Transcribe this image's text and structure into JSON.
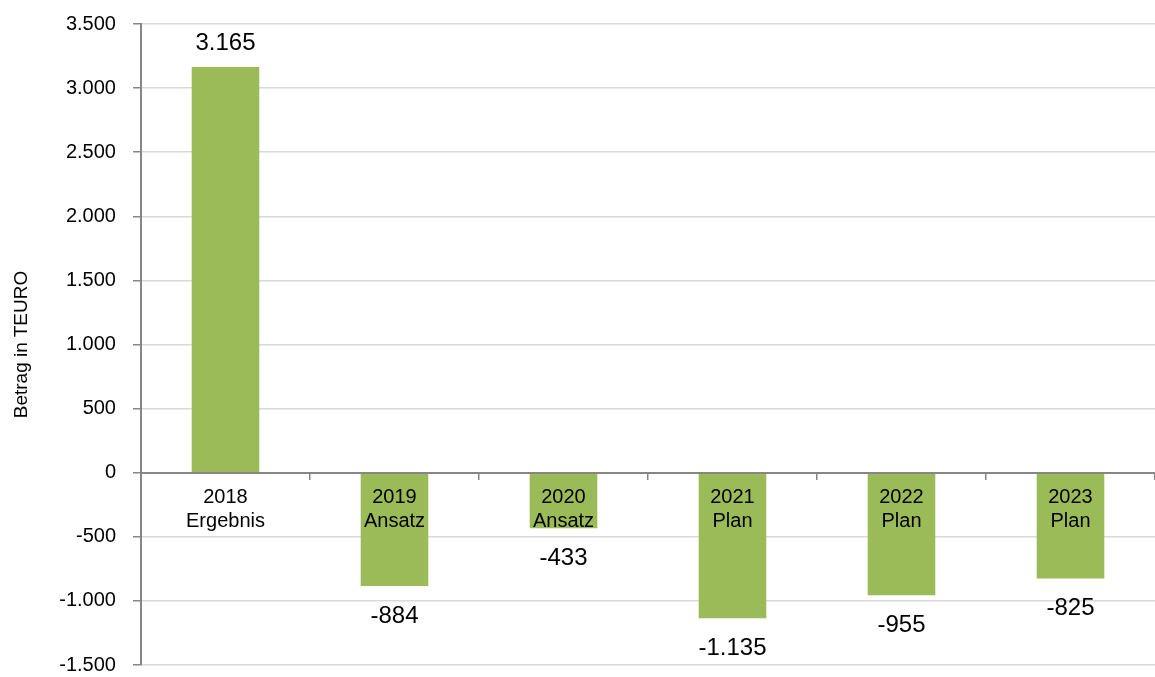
{
  "chart_data": {
    "type": "bar",
    "ylabel": "Betrag in TEURO",
    "categories": [
      "2018\nErgebnis",
      "2019\nAnsatz",
      "2020\nAnsatz",
      "2021\nPlan",
      "2022\nPlan",
      "2023\nPlan"
    ],
    "values": [
      3165,
      -884,
      -433,
      -1135,
      -955,
      -825
    ],
    "value_labels": [
      "3.165",
      "-884",
      "-433",
      "-1.135",
      "-955",
      "-825"
    ],
    "color": "#9bbb59",
    "ylim": [
      -1500,
      3500
    ],
    "yticks": [
      {
        "value": -1500,
        "label": "-1.500"
      },
      {
        "value": -1000,
        "label": "-1.000"
      },
      -500,
      0,
      500,
      {
        "value": 1000,
        "label": "1.000"
      },
      {
        "value": 1500,
        "label": "1.500"
      },
      {
        "value": 2000,
        "label": "2.000"
      },
      {
        "value": 2500,
        "label": "2.500"
      },
      {
        "value": 3000,
        "label": "3.000"
      },
      {
        "value": 3500,
        "label": "3.500"
      }
    ],
    "grid": "y"
  }
}
